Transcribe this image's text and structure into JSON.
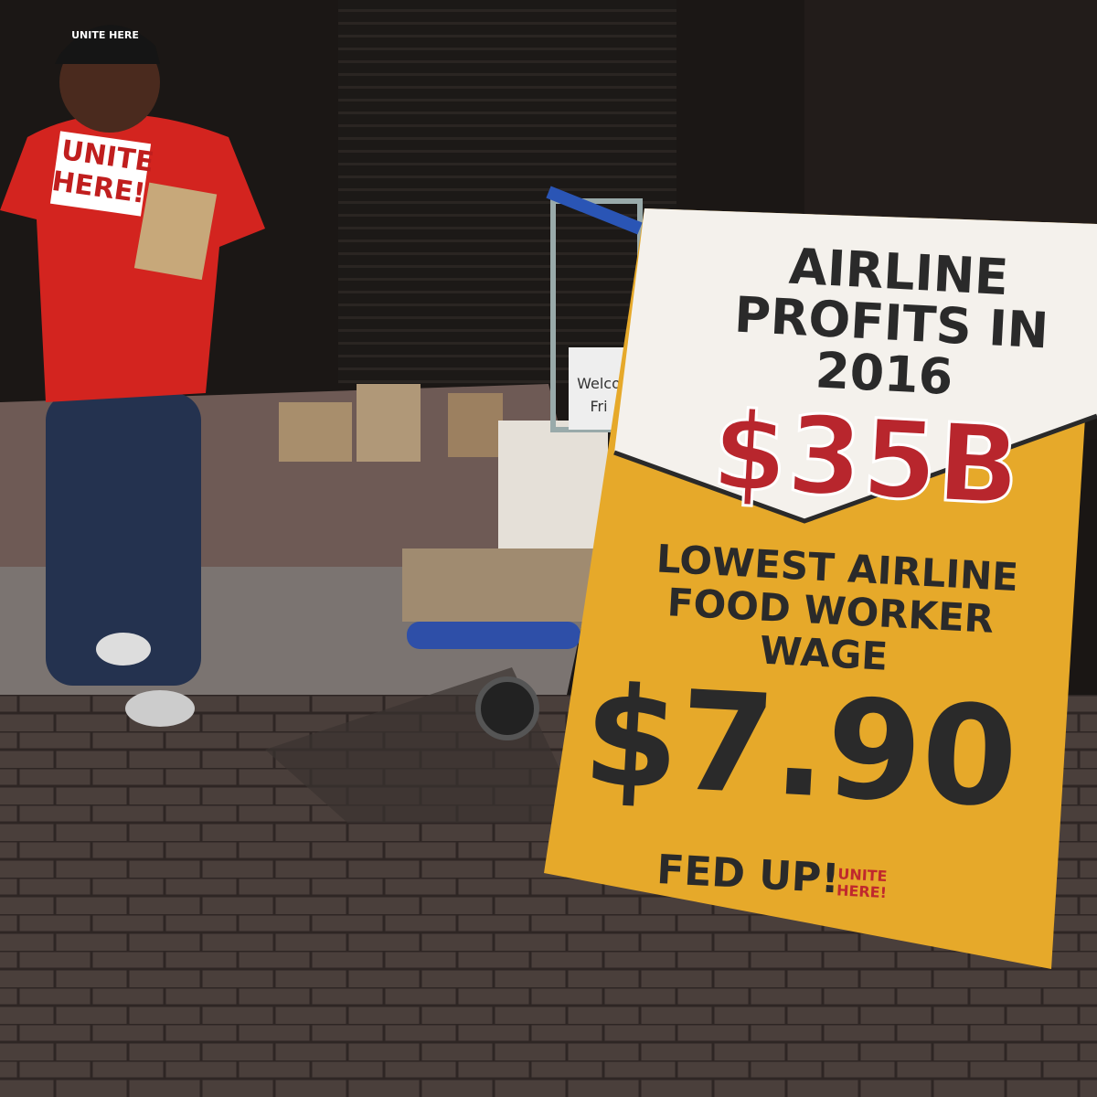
{
  "sign": {
    "headline": [
      "AIRLINE",
      "PROFITS IN",
      "2016"
    ],
    "profit": "$35B",
    "subline": [
      "LOWEST AIRLINE",
      "FOOD WORKER",
      "WAGE"
    ],
    "wage": "$7.90",
    "logo": "FED UP!",
    "union": [
      "UNITE",
      "HERE!"
    ]
  },
  "shirt": {
    "text": [
      "UNITE",
      "HERE!"
    ]
  },
  "cap": {
    "text": "UNITE HERE"
  },
  "cart_sign": {
    "text": [
      "Welco",
      "Fri"
    ]
  }
}
